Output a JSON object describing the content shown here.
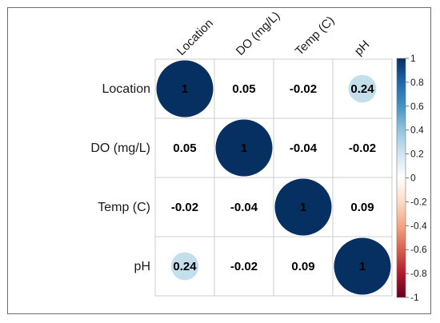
{
  "chart_data": {
    "type": "heatmap",
    "variables": [
      "Location",
      "DO (mg/L)",
      "Temp (C)",
      "pH"
    ],
    "matrix": [
      [
        1,
        0.05,
        -0.02,
        0.24
      ],
      [
        0.05,
        1,
        -0.04,
        -0.02
      ],
      [
        -0.02,
        -0.04,
        1,
        0.09
      ],
      [
        0.24,
        -0.02,
        0.09,
        1
      ]
    ],
    "labels": [
      [
        "1",
        "0.05",
        "-0.02",
        "0.24"
      ],
      [
        "0.05",
        "1",
        "-0.04",
        "-0.02"
      ],
      [
        "-0.02",
        "-0.04",
        "1",
        "0.09"
      ],
      [
        "0.24",
        "-0.02",
        "0.09",
        "1"
      ]
    ],
    "circle_cells": [
      [
        0,
        0
      ],
      [
        0,
        3
      ],
      [
        1,
        1
      ],
      [
        2,
        2
      ],
      [
        3,
        0
      ],
      [
        3,
        3
      ]
    ],
    "colorbar": {
      "range": [
        -1,
        1
      ],
      "ticks": [
        "1",
        "0.8",
        "0.6",
        "0.4",
        "0.2",
        "0",
        "-0.2",
        "-0.4",
        "-0.6",
        "-0.8",
        "-1"
      ]
    },
    "colors": {
      "positive": "#053061",
      "negative": "#67001f",
      "grid": "#cccccc"
    }
  }
}
